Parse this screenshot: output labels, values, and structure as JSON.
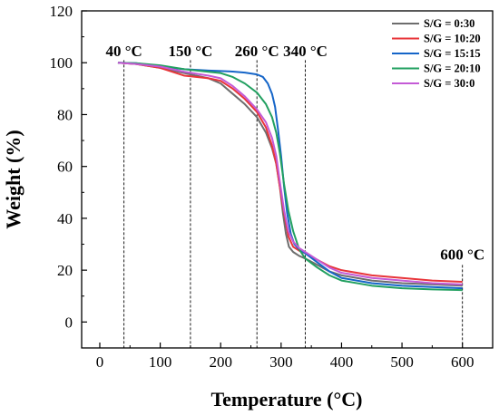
{
  "chart_data": {
    "type": "line",
    "xlabel": "Temperature (°C)",
    "ylabel": "Weight (%)",
    "xlim": [
      -30,
      650
    ],
    "ylim": [
      -10,
      120
    ],
    "xticks": [
      0,
      100,
      200,
      300,
      400,
      500,
      600
    ],
    "yticks": [
      0,
      20,
      40,
      60,
      80,
      100,
      120
    ],
    "grid": false,
    "legend_position": "top-right",
    "annotations": [
      {
        "x": 40,
        "label": "40 °C"
      },
      {
        "x": 150,
        "label": "150 °C"
      },
      {
        "x": 260,
        "label": "260 °C"
      },
      {
        "x": 340,
        "label": "340 °C"
      },
      {
        "x": 600,
        "label": "600 °C"
      }
    ],
    "series": [
      {
        "name": "S/G = 0:30",
        "color": "#6d6d6d",
        "points": [
          [
            30,
            100
          ],
          [
            60,
            99.5
          ],
          [
            100,
            98
          ],
          [
            140,
            96
          ],
          [
            180,
            94
          ],
          [
            200,
            92
          ],
          [
            220,
            88
          ],
          [
            240,
            84
          ],
          [
            260,
            79
          ],
          [
            275,
            73
          ],
          [
            285,
            67
          ],
          [
            292,
            61
          ],
          [
            298,
            52
          ],
          [
            303,
            42
          ],
          [
            308,
            34
          ],
          [
            313,
            29
          ],
          [
            320,
            27
          ],
          [
            330,
            25.5
          ],
          [
            340,
            24.5
          ],
          [
            360,
            22
          ],
          [
            380,
            19.5
          ],
          [
            400,
            18
          ],
          [
            450,
            16
          ],
          [
            500,
            15
          ],
          [
            550,
            14.5
          ],
          [
            600,
            14
          ]
        ]
      },
      {
        "name": "S/G = 10:20",
        "color": "#e8353a",
        "points": [
          [
            30,
            100
          ],
          [
            60,
            99.5
          ],
          [
            100,
            98
          ],
          [
            140,
            95
          ],
          [
            180,
            94
          ],
          [
            200,
            93
          ],
          [
            220,
            90
          ],
          [
            240,
            86
          ],
          [
            260,
            81
          ],
          [
            275,
            75
          ],
          [
            285,
            68
          ],
          [
            292,
            61
          ],
          [
            298,
            52
          ],
          [
            305,
            42
          ],
          [
            312,
            33
          ],
          [
            320,
            29
          ],
          [
            330,
            27.5
          ],
          [
            340,
            26.5
          ],
          [
            360,
            24
          ],
          [
            380,
            21.5
          ],
          [
            400,
            20
          ],
          [
            450,
            18
          ],
          [
            500,
            17
          ],
          [
            550,
            16
          ],
          [
            600,
            15.5
          ]
        ]
      },
      {
        "name": "S/G = 15:15",
        "color": "#1565c8",
        "points": [
          [
            30,
            100
          ],
          [
            60,
            99.8
          ],
          [
            100,
            98.5
          ],
          [
            140,
            97.5
          ],
          [
            180,
            97
          ],
          [
            200,
            96.8
          ],
          [
            220,
            96.6
          ],
          [
            240,
            96.2
          ],
          [
            260,
            95.5
          ],
          [
            270,
            94.5
          ],
          [
            278,
            92
          ],
          [
            285,
            88
          ],
          [
            290,
            83
          ],
          [
            295,
            74
          ],
          [
            300,
            64
          ],
          [
            305,
            52
          ],
          [
            310,
            42
          ],
          [
            316,
            34
          ],
          [
            322,
            30
          ],
          [
            330,
            28
          ],
          [
            340,
            26.5
          ],
          [
            360,
            23
          ],
          [
            380,
            19.5
          ],
          [
            400,
            17
          ],
          [
            450,
            15
          ],
          [
            500,
            14
          ],
          [
            550,
            13.5
          ],
          [
            600,
            13
          ]
        ]
      },
      {
        "name": "S/G = 20:10",
        "color": "#22a060",
        "points": [
          [
            30,
            100
          ],
          [
            60,
            99.8
          ],
          [
            100,
            99
          ],
          [
            140,
            97.5
          ],
          [
            180,
            96.5
          ],
          [
            200,
            96
          ],
          [
            220,
            94.5
          ],
          [
            240,
            92
          ],
          [
            260,
            88.5
          ],
          [
            275,
            84
          ],
          [
            285,
            79
          ],
          [
            292,
            73
          ],
          [
            298,
            65
          ],
          [
            305,
            53
          ],
          [
            312,
            43
          ],
          [
            320,
            35
          ],
          [
            330,
            28
          ],
          [
            340,
            24.5
          ],
          [
            360,
            21
          ],
          [
            380,
            18
          ],
          [
            400,
            16
          ],
          [
            450,
            14
          ],
          [
            500,
            13
          ],
          [
            550,
            12.6
          ],
          [
            600,
            12.3
          ]
        ]
      },
      {
        "name": "S/G = 30:0",
        "color": "#c45ad6",
        "points": [
          [
            30,
            100
          ],
          [
            60,
            99.5
          ],
          [
            100,
            98.5
          ],
          [
            140,
            96.5
          ],
          [
            180,
            95
          ],
          [
            200,
            94
          ],
          [
            220,
            91
          ],
          [
            240,
            87
          ],
          [
            260,
            82
          ],
          [
            275,
            77
          ],
          [
            285,
            71
          ],
          [
            292,
            64
          ],
          [
            298,
            54
          ],
          [
            305,
            43
          ],
          [
            312,
            35
          ],
          [
            320,
            31
          ],
          [
            330,
            28.5
          ],
          [
            340,
            27
          ],
          [
            360,
            24
          ],
          [
            380,
            21
          ],
          [
            400,
            19
          ],
          [
            450,
            17
          ],
          [
            500,
            16
          ],
          [
            550,
            15
          ],
          [
            600,
            14.5
          ]
        ]
      }
    ]
  }
}
